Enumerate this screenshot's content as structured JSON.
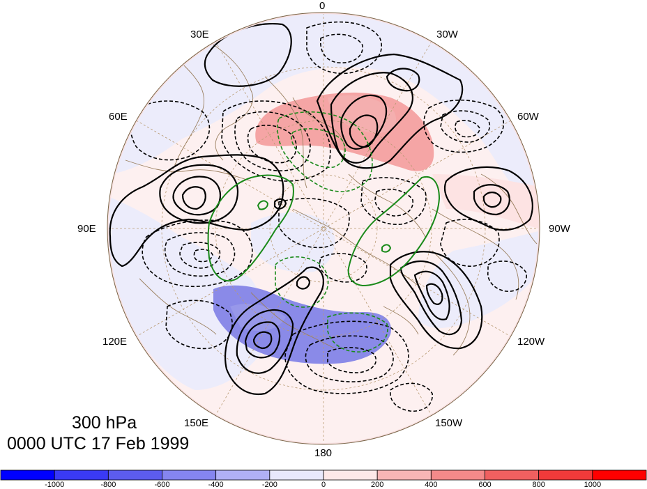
{
  "title": {
    "level": "300 hPa",
    "time": "0000 UTC 17 Feb 1999"
  },
  "longitude_labels": {
    "top": "0",
    "lon_30e": "30E",
    "lon_30w": "30W",
    "lon_60e": "60E",
    "lon_60w": "60W",
    "lon_90e": "90E",
    "lon_90w": "90W",
    "lon_120e": "120E",
    "lon_120w": "120W",
    "lon_150e": "150E",
    "lon_150w": "150W",
    "bottom": "180"
  },
  "colorbar": {
    "ticks": [
      "-1000",
      "-800",
      "-600",
      "-400",
      "-200",
      "0",
      "200",
      "400",
      "600",
      "800",
      "1000"
    ],
    "colors": [
      "#0000ff",
      "#3a3af5",
      "#5c5cee",
      "#8585f0",
      "#b0b0f6",
      "#e8e8fc",
      "#fde8e8",
      "#f8b5b5",
      "#f48a8a",
      "#f06060",
      "#f03a3a",
      "#ff0000"
    ]
  },
  "map": {
    "projection": "polar stereographic, north pole",
    "shading": "positive values red, negative values blue",
    "contour_colors": {
      "positive": "#000000",
      "negative": "#000000",
      "green": "#1a8a1a"
    }
  }
}
